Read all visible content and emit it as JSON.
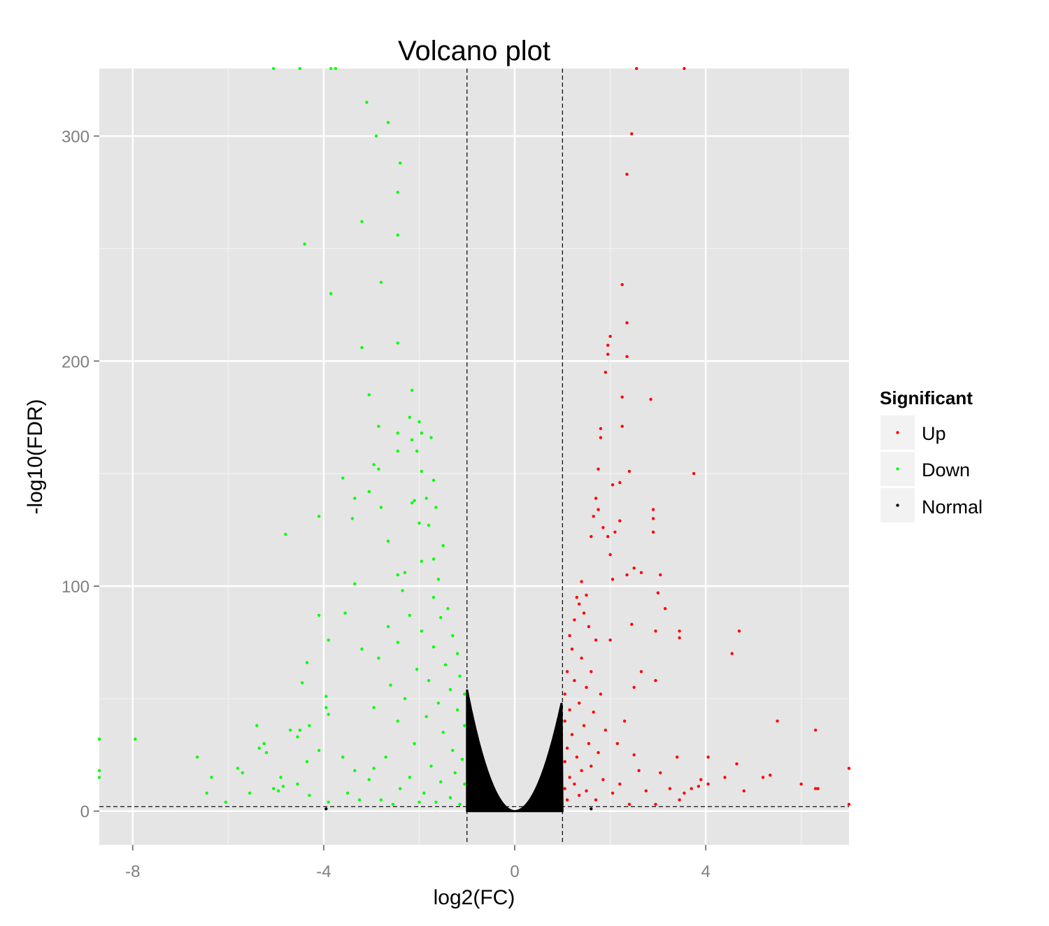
{
  "chart_data": {
    "type": "scatter",
    "title": "Volcano plot",
    "xlabel": "log2(FC)",
    "ylabel": "-log10(FDR)",
    "xlim": [
      -8.7,
      7.0
    ],
    "ylim": [
      -15,
      330
    ],
    "x_ticks": [
      -8,
      -4,
      0,
      4
    ],
    "x_tick_labels": [
      "-8",
      "-4",
      "0",
      "4"
    ],
    "y_ticks": [
      0,
      100,
      200,
      300
    ],
    "y_tick_labels": [
      "0",
      "100",
      "200",
      "300"
    ],
    "grid": true,
    "thresholds": {
      "x": [
        -1,
        1
      ],
      "y": 2
    },
    "legend": {
      "title": "Significant",
      "placement": "right",
      "entries": [
        {
          "label": "Up",
          "color": "#ff0000"
        },
        {
          "label": "Down",
          "color": "#00ff00"
        },
        {
          "label": "Normal",
          "color": "#000000"
        }
      ]
    },
    "series": [
      {
        "name": "Up",
        "color": "#ff0000",
        "points": [
          [
            2.55,
            330
          ],
          [
            3.55,
            330
          ],
          [
            2.45,
            301
          ],
          [
            2.35,
            283
          ],
          [
            2.25,
            234
          ],
          [
            2.35,
            217
          ],
          [
            2.0,
            211
          ],
          [
            1.95,
            207
          ],
          [
            1.95,
            203
          ],
          [
            2.35,
            202
          ],
          [
            1.9,
            195
          ],
          [
            2.25,
            184
          ],
          [
            2.85,
            183
          ],
          [
            2.25,
            171
          ],
          [
            1.8,
            170
          ],
          [
            1.8,
            166
          ],
          [
            2.4,
            151
          ],
          [
            1.75,
            152
          ],
          [
            3.75,
            150
          ],
          [
            2.2,
            146
          ],
          [
            2.05,
            145
          ],
          [
            1.7,
            139
          ],
          [
            2.9,
            134
          ],
          [
            1.75,
            134
          ],
          [
            2.9,
            130
          ],
          [
            1.65,
            131
          ],
          [
            2.2,
            129
          ],
          [
            1.85,
            126
          ],
          [
            2.1,
            124
          ],
          [
            1.95,
            122
          ],
          [
            2.9,
            124
          ],
          [
            1.6,
            122
          ],
          [
            2.0,
            114
          ],
          [
            2.5,
            108
          ],
          [
            2.65,
            106
          ],
          [
            3.05,
            105
          ],
          [
            2.35,
            105
          ],
          [
            2.05,
            103
          ],
          [
            1.4,
            102
          ],
          [
            3.0,
            97
          ],
          [
            3.15,
            90
          ],
          [
            2.45,
            83
          ],
          [
            3.45,
            80
          ],
          [
            4.7,
            80
          ],
          [
            2.0,
            76
          ],
          [
            3.45,
            77
          ],
          [
            2.95,
            80
          ],
          [
            4.55,
            70
          ],
          [
            2.65,
            62
          ],
          [
            2.95,
            58
          ],
          [
            2.5,
            55
          ],
          [
            5.5,
            40
          ],
          [
            6.3,
            36
          ],
          [
            4.05,
            24
          ],
          [
            3.4,
            24
          ],
          [
            4.65,
            21
          ],
          [
            5.35,
            16
          ],
          [
            5.2,
            15
          ],
          [
            6.0,
            12
          ],
          [
            4.4,
            15
          ],
          [
            3.9,
            14
          ],
          [
            4.05,
            12
          ],
          [
            6.3,
            10
          ],
          [
            6.35,
            10
          ],
          [
            4.8,
            9
          ],
          [
            7.0,
            19
          ],
          [
            7.0,
            3
          ],
          [
            3.55,
            8
          ],
          [
            3.85,
            11
          ],
          [
            3.7,
            10
          ],
          [
            3.05,
            17
          ],
          [
            2.75,
            9
          ],
          [
            2.6,
            18
          ],
          [
            3.25,
            10
          ],
          [
            3.45,
            5
          ],
          [
            2.95,
            3
          ],
          [
            2.4,
            3
          ],
          [
            1.5,
            96
          ],
          [
            1.3,
            95
          ],
          [
            1.35,
            92
          ],
          [
            1.45,
            88
          ],
          [
            1.25,
            85
          ],
          [
            1.55,
            82
          ],
          [
            1.15,
            78
          ],
          [
            1.7,
            76
          ],
          [
            1.2,
            72
          ],
          [
            1.4,
            68
          ],
          [
            1.1,
            62
          ],
          [
            1.6,
            62
          ],
          [
            1.25,
            58
          ],
          [
            1.5,
            55
          ],
          [
            1.05,
            52
          ],
          [
            1.8,
            52
          ],
          [
            1.35,
            48
          ],
          [
            1.15,
            45
          ],
          [
            1.65,
            44
          ],
          [
            1.05,
            40
          ],
          [
            1.45,
            38
          ],
          [
            1.9,
            36
          ],
          [
            1.2,
            34
          ],
          [
            1.55,
            30
          ],
          [
            1.1,
            28
          ],
          [
            1.75,
            26
          ],
          [
            1.3,
            24
          ],
          [
            1.05,
            22
          ],
          [
            1.6,
            20
          ],
          [
            1.4,
            18
          ],
          [
            1.15,
            15
          ],
          [
            1.85,
            14
          ],
          [
            1.25,
            12
          ],
          [
            1.05,
            10
          ],
          [
            1.5,
            9
          ],
          [
            1.35,
            7
          ],
          [
            1.1,
            5
          ],
          [
            1.7,
            5
          ],
          [
            2.05,
            8
          ],
          [
            2.2,
            12
          ],
          [
            2.15,
            30
          ],
          [
            2.3,
            40
          ],
          [
            2.5,
            25
          ]
        ]
      },
      {
        "name": "Down",
        "color": "#00ff00",
        "points": [
          [
            -5.05,
            330
          ],
          [
            -4.5,
            330
          ],
          [
            -3.85,
            330
          ],
          [
            -3.75,
            330
          ],
          [
            -3.1,
            315
          ],
          [
            -2.65,
            306
          ],
          [
            -2.9,
            300
          ],
          [
            -2.4,
            288
          ],
          [
            -2.45,
            275
          ],
          [
            -3.2,
            262
          ],
          [
            -2.45,
            256
          ],
          [
            -4.4,
            252
          ],
          [
            -2.8,
            235
          ],
          [
            -3.85,
            230
          ],
          [
            -2.45,
            208
          ],
          [
            -3.2,
            206
          ],
          [
            -2.15,
            187
          ],
          [
            -3.05,
            185
          ],
          [
            -2.2,
            175
          ],
          [
            -2.0,
            173
          ],
          [
            -2.85,
            171
          ],
          [
            -1.95,
            168
          ],
          [
            -2.45,
            168
          ],
          [
            -2.15,
            165
          ],
          [
            -1.75,
            166
          ],
          [
            -2.45,
            160
          ],
          [
            -2.05,
            160
          ],
          [
            -2.95,
            154
          ],
          [
            -2.85,
            152
          ],
          [
            -1.95,
            151
          ],
          [
            -3.6,
            148
          ],
          [
            -1.7,
            147
          ],
          [
            -3.05,
            142
          ],
          [
            -1.85,
            139
          ],
          [
            -2.8,
            135
          ],
          [
            -3.35,
            139
          ],
          [
            -2.1,
            138
          ],
          [
            -2.15,
            137
          ],
          [
            -1.65,
            135
          ],
          [
            -4.1,
            131
          ],
          [
            -3.4,
            130
          ],
          [
            -2.0,
            128
          ],
          [
            -1.8,
            127
          ],
          [
            -4.8,
            123
          ],
          [
            -2.65,
            120
          ],
          [
            -1.5,
            118
          ],
          [
            -1.7,
            112
          ],
          [
            -1.95,
            111
          ],
          [
            -2.3,
            106
          ],
          [
            -2.45,
            105
          ],
          [
            -1.6,
            103
          ],
          [
            -3.35,
            101
          ],
          [
            -2.35,
            98
          ],
          [
            -1.7,
            95
          ],
          [
            -1.4,
            90
          ],
          [
            -4.1,
            87
          ],
          [
            -3.55,
            88
          ],
          [
            -2.2,
            87
          ],
          [
            -1.55,
            86
          ],
          [
            -2.65,
            82
          ],
          [
            -3.9,
            76
          ],
          [
            -1.95,
            80
          ],
          [
            -1.3,
            78
          ],
          [
            -2.45,
            75
          ],
          [
            -1.7,
            73
          ],
          [
            -1.2,
            70
          ],
          [
            -3.2,
            72
          ],
          [
            -2.85,
            68
          ],
          [
            -4.35,
            66
          ],
          [
            -1.45,
            65
          ],
          [
            -2.05,
            63
          ],
          [
            -4.45,
            57
          ],
          [
            -1.15,
            60
          ],
          [
            -1.8,
            58
          ],
          [
            -2.6,
            56
          ],
          [
            -3.95,
            51
          ],
          [
            -1.35,
            54
          ],
          [
            -2.3,
            50
          ],
          [
            -1.05,
            52
          ],
          [
            -3.95,
            46
          ],
          [
            -1.6,
            48
          ],
          [
            -2.95,
            46
          ],
          [
            -1.2,
            45
          ],
          [
            -3.9,
            43
          ],
          [
            -1.85,
            42
          ],
          [
            -2.45,
            40
          ],
          [
            -5.4,
            38
          ],
          [
            -1.05,
            38
          ],
          [
            -4.3,
            38
          ],
          [
            -4.7,
            36
          ],
          [
            -4.5,
            36
          ],
          [
            -1.5,
            35
          ],
          [
            -4.55,
            33
          ],
          [
            -8.7,
            32
          ],
          [
            -7.95,
            32
          ],
          [
            -5.25,
            30
          ],
          [
            -2.1,
            30
          ],
          [
            -5.35,
            28
          ],
          [
            -5.2,
            26
          ],
          [
            -4.1,
            27
          ],
          [
            -1.3,
            27
          ],
          [
            -6.65,
            24
          ],
          [
            -2.7,
            24
          ],
          [
            -3.6,
            24
          ],
          [
            -1.1,
            23
          ],
          [
            -4.35,
            22
          ],
          [
            -1.75,
            20
          ],
          [
            -2.95,
            19
          ],
          [
            -5.8,
            19
          ],
          [
            -5.7,
            17
          ],
          [
            -3.35,
            18
          ],
          [
            -1.25,
            17
          ],
          [
            -6.35,
            15
          ],
          [
            -8.7,
            18
          ],
          [
            -8.7,
            15
          ],
          [
            -4.9,
            15
          ],
          [
            -2.2,
            15
          ],
          [
            -3.05,
            14
          ],
          [
            -1.55,
            13
          ],
          [
            -4.55,
            12
          ],
          [
            -4.85,
            11
          ],
          [
            -1.05,
            12
          ],
          [
            -5.05,
            10
          ],
          [
            -2.4,
            10
          ],
          [
            -4.95,
            9
          ],
          [
            -3.5,
            8
          ],
          [
            -5.55,
            8
          ],
          [
            -6.45,
            8
          ],
          [
            -4.3,
            7
          ],
          [
            -1.9,
            8
          ],
          [
            -1.35,
            6
          ],
          [
            -2.8,
            5
          ],
          [
            -6.05,
            4
          ],
          [
            -3.9,
            4
          ],
          [
            -1.65,
            4
          ],
          [
            -1.15,
            3
          ],
          [
            -2.55,
            3
          ],
          [
            -3.25,
            5
          ],
          [
            -2.0,
            4
          ]
        ]
      },
      {
        "name": "Normal",
        "color": "#000000",
        "points": [
          [
            -3.95,
            1
          ],
          [
            0.2,
            0.5
          ],
          [
            -0.2,
            0.5
          ],
          [
            1.6,
            1
          ]
        ]
      }
    ]
  }
}
